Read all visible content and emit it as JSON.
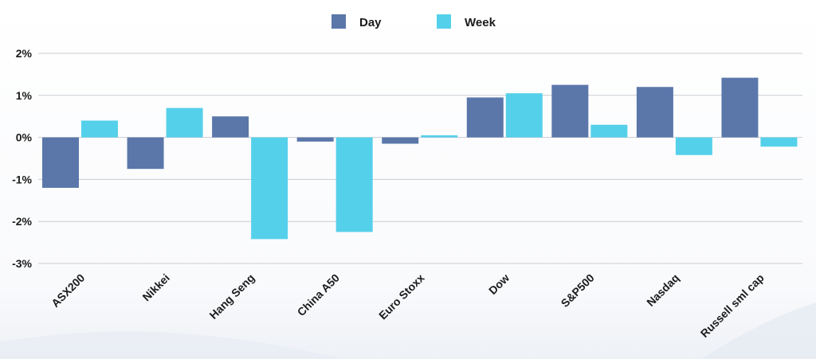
{
  "chart_data": {
    "type": "bar",
    "title": "",
    "xlabel": "",
    "ylabel": "",
    "categories": [
      "ASX200",
      "Nikkei",
      "Hang Seng",
      "China A50",
      "Euro Stoxx",
      "Dow",
      "S&P500",
      "Nasdaq",
      "Russell sml cap"
    ],
    "series": [
      {
        "name": "Day",
        "color": "#5b77aa",
        "values": [
          -1.2,
          -0.75,
          0.5,
          -0.1,
          -0.15,
          0.95,
          1.25,
          1.2,
          1.42
        ]
      },
      {
        "name": "Week",
        "color": "#55d0ea",
        "values": [
          0.4,
          0.7,
          -2.42,
          -2.25,
          0.05,
          1.05,
          0.3,
          -0.42,
          -0.22
        ]
      }
    ],
    "ylim": [
      -3,
      2
    ],
    "yticks": [
      2,
      1,
      0,
      -1,
      -2,
      -3
    ],
    "ytick_labels": [
      "2%",
      "1%",
      "0%",
      "-1%",
      "-2%",
      "-3%"
    ],
    "grid": true,
    "legend": "top-center"
  }
}
